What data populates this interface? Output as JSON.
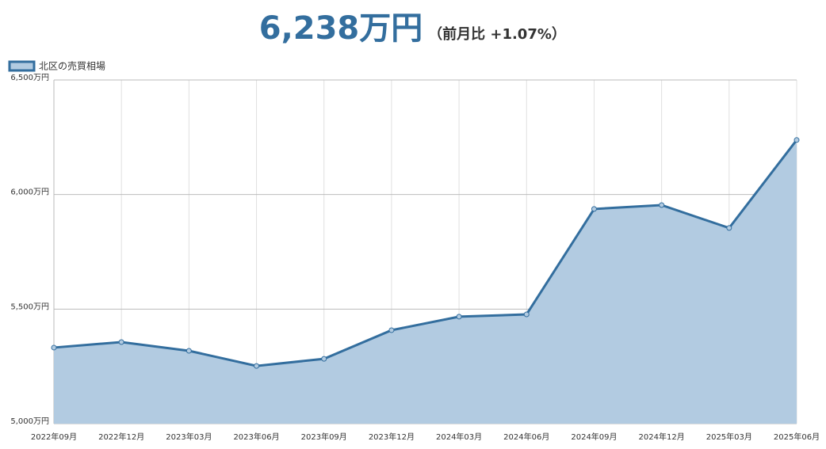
{
  "chart_data": {
    "type": "area",
    "title": "6,238万円",
    "subtitle": "（前月比 +1.07%）",
    "categories": [
      "2022年09月",
      "2022年12月",
      "2023年03月",
      "2023年06月",
      "2023年09月",
      "2023年12月",
      "2024年03月",
      "2024年06月",
      "2024年09月",
      "2024年12月",
      "2025年03月",
      "2025年06月"
    ],
    "series": [
      {
        "name": "北区の売買相場",
        "color": "#336e9e",
        "fill": "#b2cbe1",
        "values": [
          5332,
          5356,
          5318,
          5252,
          5283,
          5408,
          5467,
          5477,
          5937,
          5954,
          5854,
          6238
        ]
      }
    ],
    "ylim": [
      5000,
      6500
    ],
    "yticks": [
      {
        "value": 5000,
        "label": "5,000万円"
      },
      {
        "value": 5500,
        "label": "5,500万円"
      },
      {
        "value": 6000,
        "label": "6,000万円"
      },
      {
        "value": 6500,
        "label": "6,500万円"
      }
    ],
    "grid": true,
    "legend": "top-left"
  }
}
